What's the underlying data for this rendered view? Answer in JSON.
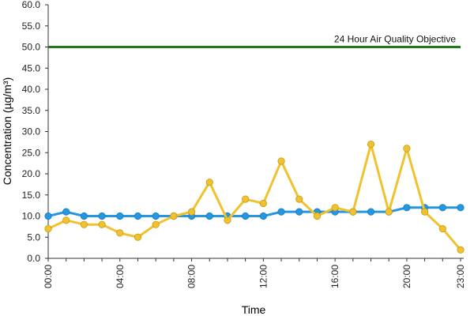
{
  "chart_data": {
    "type": "line",
    "xlabel": "Time",
    "ylabel": "Concentration (µg/m³)",
    "ylim": [
      0,
      60
    ],
    "yticks": [
      "0.0",
      "5.0",
      "10.0",
      "15.0",
      "20.0",
      "25.0",
      "30.0",
      "35.0",
      "40.0",
      "45.0",
      "50.0",
      "55.0",
      "60.0"
    ],
    "x": [
      "00:00",
      "01:00",
      "02:00",
      "03:00",
      "04:00",
      "05:00",
      "06:00",
      "07:00",
      "08:00",
      "09:00",
      "10:00",
      "11:00",
      "12:00",
      "13:00",
      "14:00",
      "15:00",
      "16:00",
      "17:00",
      "18:00",
      "19:00",
      "20:00",
      "21:00",
      "22:00",
      "23:00"
    ],
    "xtick_labels": [
      "00:00",
      "04:00",
      "08:00",
      "12:00",
      "16:00",
      "20:00",
      "23:00"
    ],
    "grid": false,
    "series": [
      {
        "color": "#2596e0",
        "values": [
          10,
          11,
          10,
          10,
          10,
          10,
          10,
          10,
          10,
          10,
          10,
          10,
          10,
          11,
          11,
          11,
          11,
          11,
          11,
          11,
          12,
          12,
          12,
          12
        ]
      },
      {
        "color": "#f0c22e",
        "values": [
          7,
          9,
          8,
          8,
          6,
          5,
          8,
          10,
          11,
          18,
          9,
          14,
          13,
          23,
          14,
          10,
          12,
          11,
          27,
          11,
          26,
          11,
          7,
          2
        ]
      }
    ],
    "reference_line": {
      "value": 50,
      "label": "24 Hour Air Quality Objective",
      "color": "#1e7a1e"
    }
  }
}
